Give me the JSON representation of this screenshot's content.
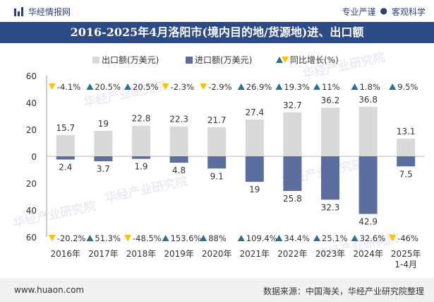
{
  "header": {
    "brand": "华经情报网",
    "tagline_left": "专业严谨",
    "separator": "●",
    "tagline_right": "客观科学",
    "logo_icon": "bar-logo-icon"
  },
  "watermark": "华经产业研究院",
  "footer": {
    "site": "www.huaon.com",
    "source": "数据来源：中国海关，华经产业研究院整理"
  },
  "colors": {
    "export": "#d9d9d9",
    "import": "#5b6e9e",
    "up": "#2f6f8f",
    "down": "#ffc000",
    "header_bg": "#2c4a86"
  },
  "chart_data": {
    "type": "bar",
    "title": "2016-2025年4月洛阳市(境内目的地/货源地)进、出口额",
    "categories": [
      "2016年",
      "2017年",
      "2018年",
      "2019年",
      "2020年",
      "2021年",
      "2022年",
      "2023年",
      "2024年",
      "2025年\n1-4月"
    ],
    "series": [
      {
        "name": "出口额(万美元)",
        "values": [
          15.7,
          19,
          22.8,
          22.3,
          21.7,
          27.4,
          32.7,
          36.2,
          36.8,
          13.1
        ]
      },
      {
        "name": "进口额(万美元)",
        "values": [
          2.4,
          3.7,
          1.9,
          4.8,
          9.1,
          19,
          25.8,
          32.3,
          42.9,
          7.5
        ]
      }
    ],
    "legend_growth": "同比增长(%)",
    "export_growth": [
      "-4.1%",
      "20.5%",
      "20.5%",
      "-2.3%",
      "-2.9%",
      "26.9%",
      "19.3%",
      "11%",
      "1.8%",
      "9.5%"
    ],
    "import_growth": [
      "-20.2%",
      "51.3%",
      "-48.5%",
      "153.6%",
      "88%",
      "109.4%",
      "34.4%",
      "25.1%",
      "32.6%",
      "-46%"
    ],
    "ytick_labels": [
      "60",
      "40",
      "20",
      "0",
      "20",
      "40",
      "60"
    ],
    "ylim": [
      -60,
      60
    ],
    "legend_position": "top-center"
  }
}
